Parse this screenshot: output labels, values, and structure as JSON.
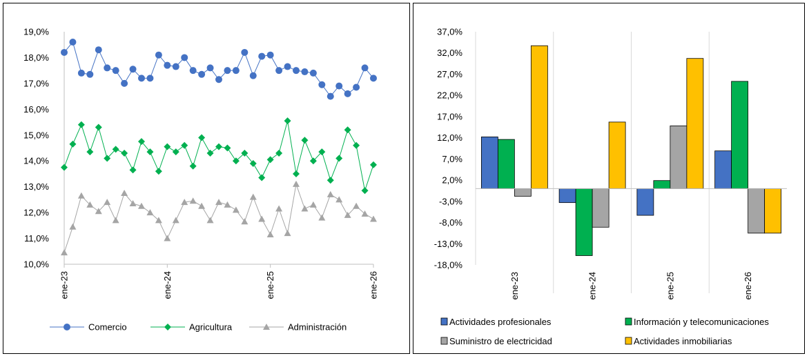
{
  "chart_data": [
    {
      "type": "line",
      "title": "",
      "xlabel": "",
      "ylabel": "",
      "ylim": [
        10.0,
        19.0
      ],
      "y_ticks": [
        "10,0%",
        "11,0%",
        "12,0%",
        "13,0%",
        "14,0%",
        "15,0%",
        "16,0%",
        "17,0%",
        "18,0%",
        "19,0%"
      ],
      "x_tick_labels": [
        "ene-23",
        "ene-24",
        "ene-25",
        "ene-26"
      ],
      "x_tick_months": [
        0,
        12,
        24,
        36
      ],
      "months": 37,
      "grid": false,
      "legend_position": "bottom",
      "series": [
        {
          "name": "Comercio",
          "color": "#4472C4",
          "marker": "circle",
          "values": [
            18.2,
            18.6,
            17.4,
            17.35,
            18.3,
            17.6,
            17.5,
            17.0,
            17.55,
            17.2,
            17.2,
            18.1,
            17.7,
            17.65,
            18.0,
            17.5,
            17.35,
            17.6,
            17.15,
            17.5,
            17.5,
            18.2,
            17.3,
            18.05,
            18.1,
            17.5,
            17.65,
            17.5,
            17.45,
            17.4,
            16.95,
            16.5,
            16.9,
            16.6,
            16.85,
            17.6,
            17.2
          ]
        },
        {
          "name": "Agricultura",
          "color": "#00B050",
          "marker": "diamond",
          "values": [
            13.75,
            14.65,
            15.4,
            14.35,
            15.3,
            14.1,
            14.45,
            14.3,
            13.65,
            14.75,
            14.35,
            13.6,
            14.55,
            14.35,
            14.6,
            13.8,
            14.9,
            14.3,
            14.55,
            14.5,
            14.0,
            14.3,
            13.9,
            13.35,
            14.05,
            14.3,
            15.55,
            13.5,
            14.8,
            14.0,
            14.35,
            13.25,
            14.1,
            15.2,
            14.6,
            12.85,
            13.85
          ]
        },
        {
          "name": "Administración",
          "color": "#A5A5A5",
          "marker": "triangle",
          "values": [
            10.45,
            11.45,
            12.65,
            12.3,
            12.05,
            12.4,
            11.7,
            12.75,
            12.35,
            12.25,
            12.0,
            11.7,
            11.0,
            11.7,
            12.4,
            12.45,
            12.25,
            11.7,
            12.4,
            12.3,
            12.1,
            11.65,
            12.6,
            11.75,
            11.15,
            12.15,
            11.2,
            13.1,
            12.15,
            12.3,
            11.8,
            12.7,
            12.5,
            11.9,
            12.25,
            11.95,
            11.75
          ]
        }
      ]
    },
    {
      "type": "bar",
      "title": "",
      "xlabel": "",
      "ylabel": "",
      "ylim": [
        -18.0,
        37.0
      ],
      "y_ticks": [
        "-18,0%",
        "-13,0%",
        "-8,0%",
        "-3,0%",
        "2,0%",
        "7,0%",
        "12,0%",
        "17,0%",
        "22,0%",
        "27,0%",
        "32,0%",
        "37,0%"
      ],
      "categories": [
        "ene-23",
        "ene-24",
        "ene-25",
        "ene-26"
      ],
      "grid": false,
      "legend_position": "bottom",
      "series": [
        {
          "name": "Actividades profesionales",
          "color": "#4472C4",
          "values": [
            12.2,
            -3.3,
            -6.3,
            8.9
          ]
        },
        {
          "name": "Información y telecomunicaciones",
          "color": "#00B050",
          "values": [
            11.6,
            -15.8,
            1.9,
            25.3
          ]
        },
        {
          "name": "Suministro de electricidad",
          "color": "#A5A5A5",
          "values": [
            -1.8,
            -9.1,
            14.8,
            -10.5
          ]
        },
        {
          "name": "Actividades inmobiliarias",
          "color": "#FFC000",
          "values": [
            33.7,
            15.7,
            30.7,
            -10.5
          ]
        }
      ]
    }
  ]
}
